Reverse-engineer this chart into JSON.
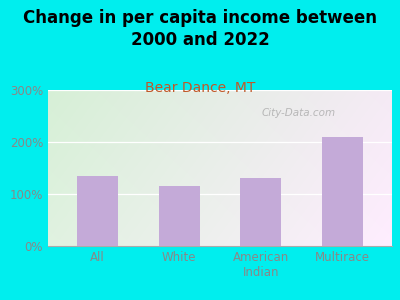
{
  "title": "Change in per capita income between\n2000 and 2022",
  "subtitle": "Bear Dance, MT",
  "categories": [
    "All",
    "White",
    "American\nIndian",
    "Multirace"
  ],
  "values": [
    135,
    115,
    130,
    210
  ],
  "bar_color": "#c4aad8",
  "background_outer": "#00EEEE",
  "background_plot_topleft": "#d6efd6",
  "background_plot_bottomright": "#f0f0e8",
  "title_fontsize": 12,
  "subtitle_fontsize": 10,
  "subtitle_color": "#c05828",
  "tick_label_color": "#888888",
  "watermark": "City-Data.com",
  "ylim": [
    0,
    300
  ],
  "yticks": [
    0,
    100,
    200,
    300
  ],
  "ytick_labels": [
    "0%",
    "100%",
    "200%",
    "300%"
  ]
}
